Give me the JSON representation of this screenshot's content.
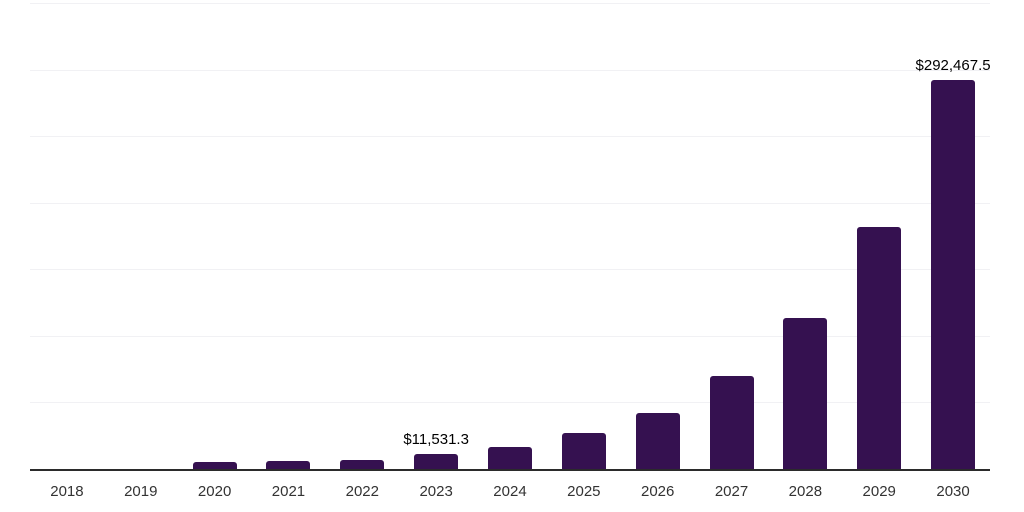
{
  "chart_data": {
    "type": "bar",
    "title": "",
    "xlabel": "",
    "ylabel": "",
    "categories": [
      "2018",
      "2019",
      "2020",
      "2021",
      "2022",
      "2023",
      "2024",
      "2025",
      "2026",
      "2027",
      "2028",
      "2029",
      "2030"
    ],
    "values": [
      0,
      0,
      5500,
      6200,
      7000,
      11531.3,
      16300,
      26800,
      42300,
      69900,
      113200,
      182000,
      292467.5
    ],
    "value_labels": {
      "2023": "$11,531.3",
      "2030": "$292,467.5"
    },
    "ylim": [
      0,
      350000
    ],
    "gridline_step": 50000,
    "grid": "horizontal-only",
    "y_tick_labels_visible": false,
    "legend": "none",
    "bar_color": "#351150",
    "axis_color": "#2b2b2b",
    "gridline_color": "#f1f1f4",
    "tick_label_color": "#333333",
    "value_label_color": "#000000"
  }
}
